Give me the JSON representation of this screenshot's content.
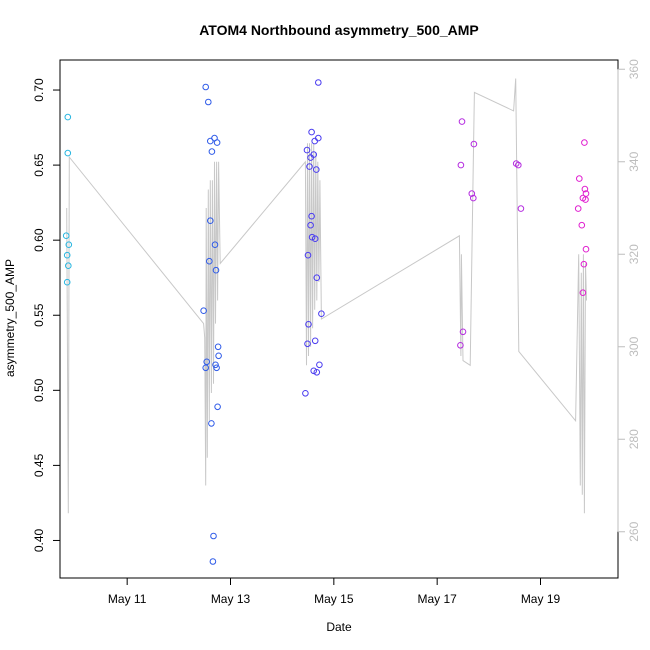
{
  "chart_data": {
    "type": "scatter",
    "title": "ATOM4 Northbound asymmetry_500_AMP",
    "xlabel": "Date",
    "ylabel": "asymmetry_500_AMP",
    "x_unit": "day of May",
    "xlim": [
      9.7,
      20.5
    ],
    "ylim": [
      0.375,
      0.72
    ],
    "ylim_right": [
      250,
      362
    ],
    "x_ticks": [
      {
        "value": 11,
        "label": "May 11"
      },
      {
        "value": 13,
        "label": "May 13"
      },
      {
        "value": 15,
        "label": "May 15"
      },
      {
        "value": 17,
        "label": "May 17"
      },
      {
        "value": 19,
        "label": "May 19"
      }
    ],
    "y_ticks": [
      {
        "value": 0.4,
        "label": "0.40"
      },
      {
        "value": 0.45,
        "label": "0.45"
      },
      {
        "value": 0.5,
        "label": "0.50"
      },
      {
        "value": 0.55,
        "label": "0.55"
      },
      {
        "value": 0.6,
        "label": "0.60"
      },
      {
        "value": 0.65,
        "label": "0.65"
      },
      {
        "value": 0.7,
        "label": "0.70"
      }
    ],
    "y_right_ticks": [
      {
        "value": 260,
        "label": "260"
      },
      {
        "value": 280,
        "label": "280"
      },
      {
        "value": 300,
        "label": "300"
      },
      {
        "value": 320,
        "label": "320"
      },
      {
        "value": 340,
        "label": "340"
      },
      {
        "value": 360,
        "label": "360"
      }
    ],
    "series": [
      {
        "name": "asymmetry_500_AMP",
        "axis": "left",
        "points": [
          {
            "x": 9.85,
            "y": 0.682,
            "color": "#29b6e0"
          },
          {
            "x": 9.85,
            "y": 0.658,
            "color": "#29b6e0"
          },
          {
            "x": 9.82,
            "y": 0.603,
            "color": "#29b6e0"
          },
          {
            "x": 9.87,
            "y": 0.597,
            "color": "#29b6e0"
          },
          {
            "x": 9.84,
            "y": 0.59,
            "color": "#29b6e0"
          },
          {
            "x": 9.86,
            "y": 0.583,
            "color": "#29b6e0"
          },
          {
            "x": 9.84,
            "y": 0.572,
            "color": "#29b6e0"
          },
          {
            "x": 12.52,
            "y": 0.702,
            "color": "#2f5be8"
          },
          {
            "x": 12.57,
            "y": 0.692,
            "color": "#2f5be8"
          },
          {
            "x": 12.69,
            "y": 0.668,
            "color": "#2f5be8"
          },
          {
            "x": 12.61,
            "y": 0.666,
            "color": "#2f5be8"
          },
          {
            "x": 12.74,
            "y": 0.665,
            "color": "#2f5be8"
          },
          {
            "x": 12.64,
            "y": 0.659,
            "color": "#2f5be8"
          },
          {
            "x": 12.61,
            "y": 0.613,
            "color": "#2f5be8"
          },
          {
            "x": 12.7,
            "y": 0.597,
            "color": "#2f5be8"
          },
          {
            "x": 12.59,
            "y": 0.586,
            "color": "#2f5be8"
          },
          {
            "x": 12.72,
            "y": 0.58,
            "color": "#2f5be8"
          },
          {
            "x": 12.48,
            "y": 0.553,
            "color": "#2f5be8"
          },
          {
            "x": 12.76,
            "y": 0.529,
            "color": "#2f5be8"
          },
          {
            "x": 12.77,
            "y": 0.523,
            "color": "#2f5be8"
          },
          {
            "x": 12.54,
            "y": 0.519,
            "color": "#2f5be8"
          },
          {
            "x": 12.71,
            "y": 0.517,
            "color": "#2f5be8"
          },
          {
            "x": 12.52,
            "y": 0.515,
            "color": "#2f5be8"
          },
          {
            "x": 12.73,
            "y": 0.515,
            "color": "#2f5be8"
          },
          {
            "x": 12.75,
            "y": 0.489,
            "color": "#2f5be8"
          },
          {
            "x": 12.63,
            "y": 0.478,
            "color": "#2f5be8"
          },
          {
            "x": 12.67,
            "y": 0.403,
            "color": "#2f5be8"
          },
          {
            "x": 12.66,
            "y": 0.386,
            "color": "#2f5be8"
          },
          {
            "x": 14.7,
            "y": 0.705,
            "color": "#4a3cf0"
          },
          {
            "x": 14.57,
            "y": 0.672,
            "color": "#4a3cf0"
          },
          {
            "x": 14.7,
            "y": 0.668,
            "color": "#4a3cf0"
          },
          {
            "x": 14.63,
            "y": 0.666,
            "color": "#4a3cf0"
          },
          {
            "x": 14.48,
            "y": 0.66,
            "color": "#4a3cf0"
          },
          {
            "x": 14.61,
            "y": 0.657,
            "color": "#4a3cf0"
          },
          {
            "x": 14.55,
            "y": 0.655,
            "color": "#4a3cf0"
          },
          {
            "x": 14.53,
            "y": 0.649,
            "color": "#4a3cf0"
          },
          {
            "x": 14.66,
            "y": 0.647,
            "color": "#4a3cf0"
          },
          {
            "x": 14.57,
            "y": 0.616,
            "color": "#4a3cf0"
          },
          {
            "x": 14.55,
            "y": 0.61,
            "color": "#4a3cf0"
          },
          {
            "x": 14.58,
            "y": 0.602,
            "color": "#4a3cf0"
          },
          {
            "x": 14.64,
            "y": 0.601,
            "color": "#4a3cf0"
          },
          {
            "x": 14.5,
            "y": 0.59,
            "color": "#4a3cf0"
          },
          {
            "x": 14.67,
            "y": 0.575,
            "color": "#4a3cf0"
          },
          {
            "x": 14.76,
            "y": 0.551,
            "color": "#4a3cf0"
          },
          {
            "x": 14.51,
            "y": 0.544,
            "color": "#4a3cf0"
          },
          {
            "x": 14.64,
            "y": 0.533,
            "color": "#4a3cf0"
          },
          {
            "x": 14.49,
            "y": 0.531,
            "color": "#4a3cf0"
          },
          {
            "x": 14.72,
            "y": 0.517,
            "color": "#4a3cf0"
          },
          {
            "x": 14.61,
            "y": 0.513,
            "color": "#4a3cf0"
          },
          {
            "x": 14.67,
            "y": 0.512,
            "color": "#4a3cf0"
          },
          {
            "x": 14.45,
            "y": 0.498,
            "color": "#4a3cf0"
          },
          {
            "x": 17.48,
            "y": 0.679,
            "color": "#b52de0"
          },
          {
            "x": 17.46,
            "y": 0.65,
            "color": "#b52de0"
          },
          {
            "x": 17.5,
            "y": 0.539,
            "color": "#b52de0"
          },
          {
            "x": 17.45,
            "y": 0.53,
            "color": "#b52de0"
          },
          {
            "x": 17.71,
            "y": 0.664,
            "color": "#b52de0"
          },
          {
            "x": 17.67,
            "y": 0.631,
            "color": "#b52de0"
          },
          {
            "x": 17.7,
            "y": 0.628,
            "color": "#b52de0"
          },
          {
            "x": 18.53,
            "y": 0.651,
            "color": "#b52de0"
          },
          {
            "x": 18.57,
            "y": 0.65,
            "color": "#b52de0"
          },
          {
            "x": 18.62,
            "y": 0.621,
            "color": "#b52de0"
          },
          {
            "x": 19.85,
            "y": 0.665,
            "color": "#e020d0"
          },
          {
            "x": 19.75,
            "y": 0.641,
            "color": "#e020d0"
          },
          {
            "x": 19.86,
            "y": 0.634,
            "color": "#e020d0"
          },
          {
            "x": 19.88,
            "y": 0.631,
            "color": "#e020d0"
          },
          {
            "x": 19.82,
            "y": 0.628,
            "color": "#e020d0"
          },
          {
            "x": 19.87,
            "y": 0.627,
            "color": "#e020d0"
          },
          {
            "x": 19.73,
            "y": 0.621,
            "color": "#e020d0"
          },
          {
            "x": 19.8,
            "y": 0.61,
            "color": "#e020d0"
          },
          {
            "x": 19.88,
            "y": 0.594,
            "color": "#e020d0"
          },
          {
            "x": 19.84,
            "y": 0.584,
            "color": "#e020d0"
          },
          {
            "x": 19.82,
            "y": 0.565,
            "color": "#e020d0"
          }
        ]
      },
      {
        "name": "right-axis line",
        "axis": "right",
        "type": "line",
        "color": "#c8c8c8",
        "points": [
          {
            "x": 9.83,
            "y": 330
          },
          {
            "x": 9.86,
            "y": 264
          },
          {
            "x": 9.88,
            "y": 341
          },
          {
            "x": 12.48,
            "y": 305
          },
          {
            "x": 12.5,
            "y": 302
          },
          {
            "x": 12.52,
            "y": 270
          },
          {
            "x": 12.53,
            "y": 330
          },
          {
            "x": 12.55,
            "y": 276
          },
          {
            "x": 12.57,
            "y": 334
          },
          {
            "x": 12.59,
            "y": 284
          },
          {
            "x": 12.61,
            "y": 336
          },
          {
            "x": 12.63,
            "y": 290
          },
          {
            "x": 12.65,
            "y": 336
          },
          {
            "x": 12.67,
            "y": 292
          },
          {
            "x": 12.69,
            "y": 340
          },
          {
            "x": 12.71,
            "y": 305
          },
          {
            "x": 12.73,
            "y": 340
          },
          {
            "x": 12.75,
            "y": 310
          },
          {
            "x": 12.77,
            "y": 340
          },
          {
            "x": 12.8,
            "y": 318
          },
          {
            "x": 14.45,
            "y": 340
          },
          {
            "x": 14.47,
            "y": 296
          },
          {
            "x": 14.49,
            "y": 344
          },
          {
            "x": 14.51,
            "y": 298
          },
          {
            "x": 14.53,
            "y": 344
          },
          {
            "x": 14.55,
            "y": 300
          },
          {
            "x": 14.57,
            "y": 344
          },
          {
            "x": 14.59,
            "y": 304
          },
          {
            "x": 14.61,
            "y": 344
          },
          {
            "x": 14.63,
            "y": 308
          },
          {
            "x": 14.65,
            "y": 342
          },
          {
            "x": 14.67,
            "y": 310
          },
          {
            "x": 14.69,
            "y": 340
          },
          {
            "x": 14.71,
            "y": 314
          },
          {
            "x": 14.73,
            "y": 336
          },
          {
            "x": 14.76,
            "y": 306
          },
          {
            "x": 17.43,
            "y": 324
          },
          {
            "x": 17.46,
            "y": 298
          },
          {
            "x": 17.47,
            "y": 320
          },
          {
            "x": 17.5,
            "y": 297
          },
          {
            "x": 17.64,
            "y": 296
          },
          {
            "x": 17.7,
            "y": 340
          },
          {
            "x": 17.72,
            "y": 355
          },
          {
            "x": 18.48,
            "y": 351
          },
          {
            "x": 18.52,
            "y": 358
          },
          {
            "x": 18.58,
            "y": 299
          },
          {
            "x": 19.68,
            "y": 284
          },
          {
            "x": 19.74,
            "y": 320
          },
          {
            "x": 19.77,
            "y": 270
          },
          {
            "x": 19.79,
            "y": 316
          },
          {
            "x": 19.81,
            "y": 268
          },
          {
            "x": 19.83,
            "y": 320
          },
          {
            "x": 19.85,
            "y": 264
          },
          {
            "x": 19.87,
            "y": 318
          },
          {
            "x": 19.89,
            "y": 310
          }
        ]
      }
    ]
  }
}
